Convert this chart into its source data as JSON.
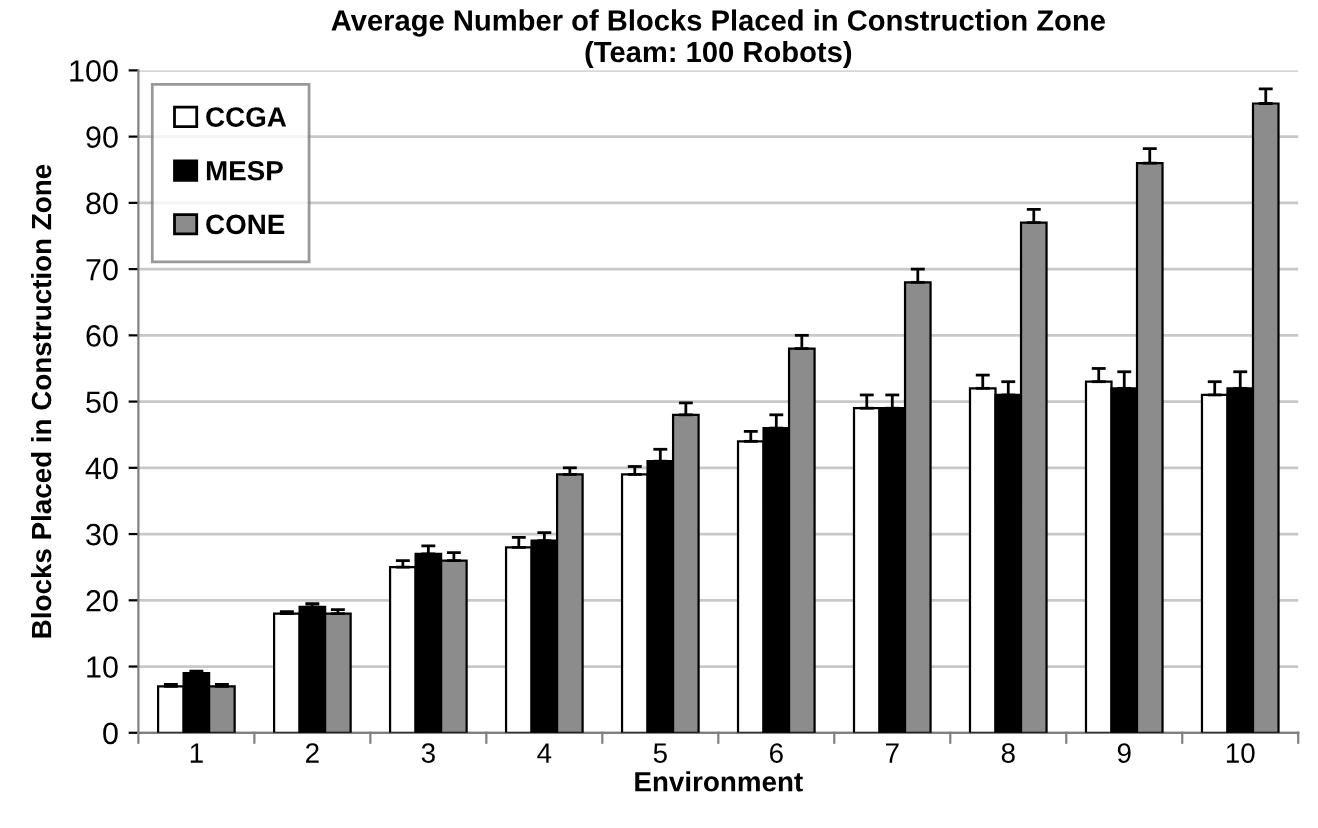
{
  "chart_data": {
    "type": "bar",
    "title": "Average Number of Blocks Placed in Construction Zone\n(Team: 100 Robots)",
    "xlabel": "Environment",
    "ylabel": "Blocks Placed in Construction Zone",
    "categories": [
      "1",
      "2",
      "3",
      "4",
      "5",
      "6",
      "7",
      "8",
      "9",
      "10"
    ],
    "series": [
      {
        "name": "CCGA",
        "color": "#ffffff",
        "values": [
          7,
          18,
          25,
          28,
          39,
          44,
          49,
          52,
          53,
          51
        ],
        "errors": [
          0.3,
          0.3,
          1,
          1.5,
          1.2,
          1.5,
          2,
          2,
          2,
          2
        ]
      },
      {
        "name": "MESP",
        "color": "#000000",
        "values": [
          9,
          19,
          27,
          29,
          41,
          46,
          49,
          51,
          52,
          52
        ],
        "errors": [
          0.3,
          0.5,
          1.2,
          1.2,
          1.8,
          2,
          2,
          2,
          2.5,
          2.5
        ]
      },
      {
        "name": "CONE",
        "color": "#8c8c8c",
        "values": [
          7,
          18,
          26,
          39,
          48,
          58,
          68,
          77,
          86,
          95
        ],
        "errors": [
          0.3,
          0.6,
          1.2,
          1,
          1.8,
          2,
          2,
          2,
          2.2,
          2.2
        ]
      }
    ],
    "ylim": [
      0,
      100
    ],
    "yticks": [
      0,
      10,
      20,
      30,
      40,
      50,
      60,
      70,
      80,
      90,
      100
    ],
    "grid": "y",
    "legend": "top left"
  }
}
